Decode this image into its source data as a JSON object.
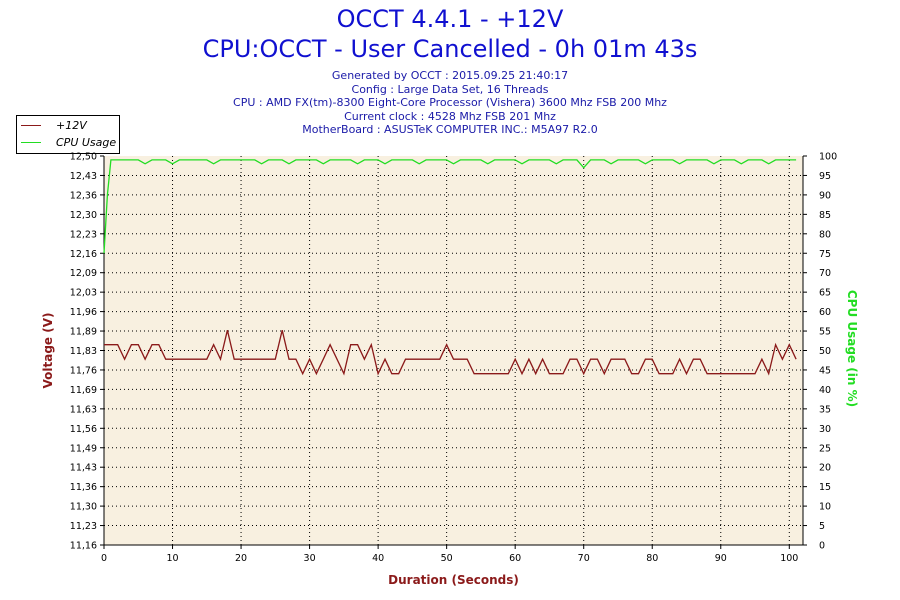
{
  "header": {
    "title": "OCCT 4.4.1 - +12V",
    "subtitle": "CPU:OCCT - User Cancelled - 0h 01m 43s",
    "info_lines": [
      "Generated by OCCT : 2015.09.25 21:40:17",
      "Config : Large Data Set, 16 Threads",
      "CPU : AMD FX(tm)-8300 Eight-Core Processor (Vishera) 3600 Mhz FSB 200 Mhz",
      "Current clock : 4528 Mhz FSB 201 Mhz",
      "MotherBoard : ASUSTeK COMPUTER INC.: M5A97 R2.0"
    ]
  },
  "legend": {
    "items": [
      {
        "label": "+12V",
        "color": "#8b1a1a"
      },
      {
        "label": "CPU Usage",
        "color": "#22dd22"
      }
    ]
  },
  "colors": {
    "plot_background": "#f8f0e0",
    "grid": "#000000",
    "voltage": "#8b1a1a",
    "cpu": "#22dd22",
    "title": "#1010d0"
  },
  "chart_data": {
    "type": "line",
    "xlabel": "Duration (Seconds)",
    "ylabel": "Voltage (V)",
    "y2label": "CPU Usage (in %)",
    "xlim": [
      0,
      102
    ],
    "ylim": [
      11.16,
      12.5
    ],
    "y2lim": [
      0,
      100
    ],
    "x_ticks": [
      0,
      10,
      20,
      30,
      40,
      50,
      60,
      70,
      80,
      90,
      100
    ],
    "y_tick_labels": [
      "12,50",
      "12,43",
      "12,36",
      "12,30",
      "12,23",
      "12,16",
      "12,09",
      "12,03",
      "11,96",
      "11,89",
      "11,83",
      "11,76",
      "11,69",
      "11,63",
      "11,56",
      "11,49",
      "11,43",
      "11,36",
      "11,30",
      "11,23",
      "11,16"
    ],
    "y2_ticks": [
      100,
      95,
      90,
      85,
      80,
      75,
      70,
      65,
      60,
      55,
      50,
      45,
      40,
      35,
      30,
      25,
      20,
      15,
      10,
      5,
      0
    ],
    "grid": true,
    "legend_position": "top-left",
    "series": [
      {
        "name": "+12V",
        "axis": "left",
        "x": [
          0,
          1,
          2,
          3,
          4,
          5,
          6,
          7,
          8,
          9,
          10,
          11,
          12,
          13,
          14,
          15,
          16,
          17,
          18,
          19,
          20,
          21,
          22,
          23,
          24,
          25,
          26,
          27,
          28,
          29,
          30,
          31,
          32,
          33,
          34,
          35,
          36,
          37,
          38,
          39,
          40,
          41,
          42,
          43,
          44,
          45,
          46,
          47,
          48,
          49,
          50,
          51,
          52,
          53,
          54,
          55,
          56,
          57,
          58,
          59,
          60,
          61,
          62,
          63,
          64,
          65,
          66,
          67,
          68,
          69,
          70,
          71,
          72,
          73,
          74,
          75,
          76,
          77,
          78,
          79,
          80,
          81,
          82,
          83,
          84,
          85,
          86,
          87,
          88,
          89,
          90,
          91,
          92,
          93,
          94,
          95,
          96,
          97,
          98,
          99,
          100,
          101
        ],
        "values": [
          11.85,
          11.85,
          11.85,
          11.8,
          11.85,
          11.85,
          11.8,
          11.85,
          11.85,
          11.8,
          11.8,
          11.8,
          11.8,
          11.8,
          11.8,
          11.8,
          11.85,
          11.8,
          11.9,
          11.8,
          11.8,
          11.8,
          11.8,
          11.8,
          11.8,
          11.8,
          11.9,
          11.8,
          11.8,
          11.75,
          11.8,
          11.75,
          11.8,
          11.85,
          11.8,
          11.75,
          11.85,
          11.85,
          11.8,
          11.85,
          11.75,
          11.8,
          11.75,
          11.75,
          11.8,
          11.8,
          11.8,
          11.8,
          11.8,
          11.8,
          11.85,
          11.8,
          11.8,
          11.8,
          11.75,
          11.75,
          11.75,
          11.75,
          11.75,
          11.75,
          11.8,
          11.75,
          11.8,
          11.75,
          11.8,
          11.75,
          11.75,
          11.75,
          11.8,
          11.8,
          11.75,
          11.8,
          11.8,
          11.75,
          11.8,
          11.8,
          11.8,
          11.75,
          11.75,
          11.8,
          11.8,
          11.75,
          11.75,
          11.75,
          11.8,
          11.75,
          11.8,
          11.8,
          11.75,
          11.75,
          11.75,
          11.75,
          11.75,
          11.75,
          11.75,
          11.75,
          11.8,
          11.75,
          11.85,
          11.8,
          11.85,
          11.8
        ]
      },
      {
        "name": "CPU Usage",
        "axis": "right",
        "x": [
          0,
          0.5,
          1,
          2,
          3,
          4,
          5,
          6,
          7,
          8,
          9,
          10,
          11,
          12,
          13,
          14,
          15,
          16,
          17,
          18,
          19,
          20,
          21,
          22,
          23,
          24,
          25,
          26,
          27,
          28,
          29,
          30,
          31,
          32,
          33,
          34,
          35,
          36,
          37,
          38,
          39,
          40,
          41,
          42,
          43,
          44,
          45,
          46,
          47,
          48,
          49,
          50,
          51,
          52,
          53,
          54,
          55,
          56,
          57,
          58,
          59,
          60,
          61,
          62,
          63,
          64,
          65,
          66,
          67,
          68,
          69,
          70,
          71,
          72,
          73,
          74,
          75,
          76,
          77,
          78,
          79,
          80,
          81,
          82,
          83,
          84,
          85,
          86,
          87,
          88,
          89,
          90,
          91,
          92,
          93,
          94,
          95,
          96,
          97,
          98,
          99,
          100,
          101
        ],
        "values": [
          75,
          90,
          99,
          99,
          99,
          99,
          99,
          98,
          99,
          99,
          99,
          98,
          99,
          99,
          99,
          99,
          99,
          98,
          99,
          99,
          99,
          99,
          99,
          99,
          98,
          99,
          99,
          99,
          98,
          99,
          99,
          99,
          99,
          98,
          99,
          99,
          99,
          99,
          98,
          99,
          99,
          99,
          98,
          99,
          99,
          99,
          99,
          98,
          99,
          99,
          99,
          99,
          98,
          99,
          99,
          99,
          99,
          98,
          99,
          99,
          99,
          99,
          98,
          99,
          99,
          99,
          99,
          98,
          99,
          99,
          99,
          97,
          99,
          99,
          99,
          98,
          99,
          99,
          99,
          99,
          98,
          99,
          99,
          99,
          99,
          98,
          99,
          99,
          99,
          99,
          98,
          99,
          99,
          99,
          98,
          99,
          99,
          99,
          98,
          99,
          99,
          99,
          99
        ]
      }
    ]
  }
}
